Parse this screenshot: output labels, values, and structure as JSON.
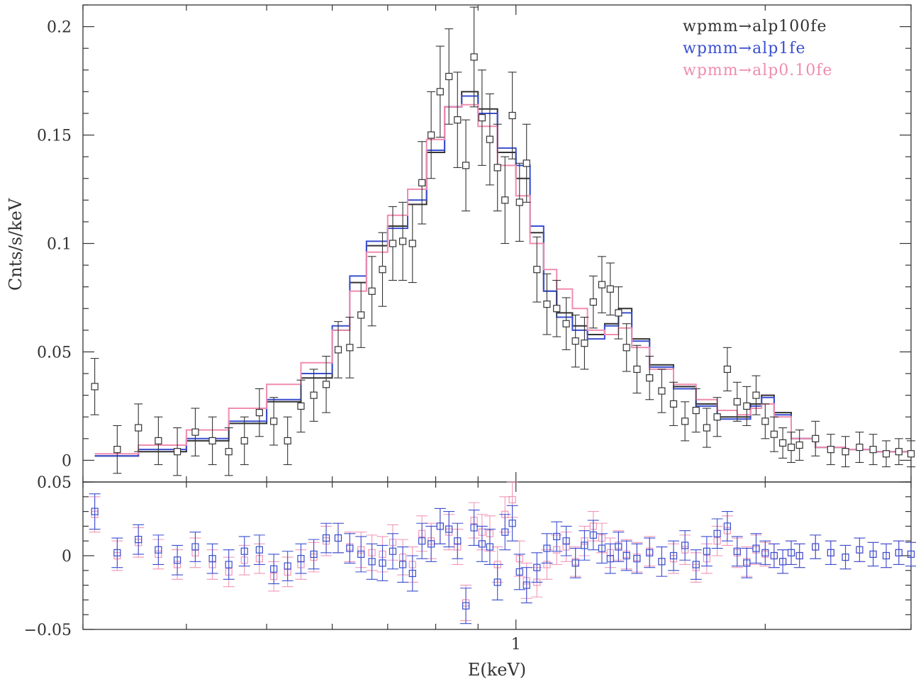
{
  "chart_data": [
    {
      "panel": "spectrum",
      "type": "line",
      "xlabel": "",
      "ylabel": "Cnts/s/keV",
      "x_scale": "log",
      "xlim": [
        0.3,
        3.0
      ],
      "ylim": [
        -0.01,
        0.21
      ],
      "y_ticks": [
        0,
        0.05,
        0.1,
        0.15,
        0.2
      ],
      "y_tick_labels": [
        "0",
        "0.05",
        "0.1",
        "0.15",
        "0.2"
      ],
      "legend_position": "top-right",
      "series": [
        {
          "name": "wpmm→alp100fe",
          "color": "#333333",
          "style": "step",
          "x": [
            0.31,
            0.35,
            0.4,
            0.45,
            0.5,
            0.55,
            0.6,
            0.63,
            0.66,
            0.7,
            0.74,
            0.78,
            0.82,
            0.86,
            0.9,
            0.95,
            1.0,
            1.04,
            1.08,
            1.12,
            1.17,
            1.22,
            1.28,
            1.33,
            1.38,
            1.45,
            1.55,
            1.65,
            1.75,
            1.85,
            1.92,
            1.98,
            2.05,
            2.15,
            2.3,
            2.5,
            2.7,
            3.0
          ],
          "y": [
            0.002,
            0.004,
            0.009,
            0.017,
            0.027,
            0.038,
            0.06,
            0.082,
            0.099,
            0.108,
            0.118,
            0.142,
            0.163,
            0.17,
            0.162,
            0.142,
            0.13,
            0.105,
            0.078,
            0.068,
            0.062,
            0.058,
            0.063,
            0.07,
            0.056,
            0.044,
            0.034,
            0.026,
            0.02,
            0.02,
            0.026,
            0.03,
            0.022,
            0.01,
            0.006,
            0.005,
            0.004,
            0.003
          ]
        },
        {
          "name": "wpmm→alp1fe",
          "color": "#3a4fd0",
          "style": "step",
          "x": [
            0.31,
            0.35,
            0.4,
            0.45,
            0.5,
            0.55,
            0.6,
            0.63,
            0.66,
            0.7,
            0.74,
            0.78,
            0.82,
            0.86,
            0.9,
            0.95,
            1.0,
            1.04,
            1.08,
            1.12,
            1.17,
            1.22,
            1.28,
            1.33,
            1.38,
            1.45,
            1.55,
            1.65,
            1.75,
            1.85,
            1.92,
            1.98,
            2.05,
            2.15,
            2.3,
            2.5,
            2.7,
            3.0
          ],
          "y": [
            0.002,
            0.005,
            0.01,
            0.018,
            0.028,
            0.04,
            0.062,
            0.085,
            0.101,
            0.107,
            0.12,
            0.143,
            0.163,
            0.168,
            0.16,
            0.144,
            0.136,
            0.108,
            0.078,
            0.066,
            0.06,
            0.056,
            0.062,
            0.068,
            0.055,
            0.043,
            0.033,
            0.025,
            0.019,
            0.019,
            0.025,
            0.029,
            0.021,
            0.01,
            0.006,
            0.005,
            0.004,
            0.003
          ]
        },
        {
          "name": "wpmm→alp0.10fe",
          "color": "#f08cb0",
          "style": "step",
          "x": [
            0.31,
            0.35,
            0.4,
            0.45,
            0.5,
            0.55,
            0.6,
            0.63,
            0.66,
            0.7,
            0.74,
            0.78,
            0.82,
            0.86,
            0.9,
            0.95,
            1.0,
            1.04,
            1.08,
            1.12,
            1.17,
            1.22,
            1.28,
            1.33,
            1.38,
            1.45,
            1.55,
            1.65,
            1.75,
            1.85,
            1.92,
            1.98,
            2.05,
            2.15,
            2.3,
            2.5,
            2.7,
            3.0
          ],
          "y": [
            0.003,
            0.007,
            0.014,
            0.024,
            0.035,
            0.045,
            0.06,
            0.078,
            0.096,
            0.113,
            0.125,
            0.148,
            0.163,
            0.164,
            0.154,
            0.136,
            0.122,
            0.1,
            0.088,
            0.079,
            0.07,
            0.06,
            0.058,
            0.061,
            0.052,
            0.042,
            0.035,
            0.028,
            0.023,
            0.021,
            0.024,
            0.026,
            0.02,
            0.01,
            0.006,
            0.005,
            0.004,
            0.003
          ]
        }
      ],
      "data_points": {
        "name": "data",
        "marker": "open-square",
        "color": "#333333",
        "x": [
          0.31,
          0.33,
          0.35,
          0.37,
          0.39,
          0.41,
          0.43,
          0.45,
          0.47,
          0.49,
          0.51,
          0.53,
          0.55,
          0.57,
          0.59,
          0.61,
          0.63,
          0.65,
          0.67,
          0.69,
          0.71,
          0.73,
          0.75,
          0.77,
          0.79,
          0.81,
          0.83,
          0.85,
          0.87,
          0.89,
          0.91,
          0.93,
          0.95,
          0.97,
          0.99,
          1.01,
          1.03,
          1.06,
          1.09,
          1.12,
          1.15,
          1.18,
          1.21,
          1.24,
          1.27,
          1.3,
          1.33,
          1.36,
          1.4,
          1.45,
          1.5,
          1.55,
          1.6,
          1.65,
          1.7,
          1.75,
          1.8,
          1.85,
          1.9,
          1.95,
          2.0,
          2.05,
          2.1,
          2.15,
          2.2,
          2.3,
          2.4,
          2.5,
          2.6,
          2.7,
          2.8,
          2.9,
          3.0
        ],
        "y": [
          0.034,
          0.005,
          0.015,
          0.009,
          0.004,
          0.013,
          0.009,
          0.004,
          0.009,
          0.022,
          0.018,
          0.009,
          0.025,
          0.03,
          0.035,
          0.051,
          0.052,
          0.067,
          0.078,
          0.088,
          0.1,
          0.101,
          0.1,
          0.128,
          0.15,
          0.17,
          0.177,
          0.157,
          0.136,
          0.186,
          0.158,
          0.148,
          0.135,
          0.12,
          0.159,
          0.119,
          0.137,
          0.088,
          0.072,
          0.07,
          0.063,
          0.055,
          0.054,
          0.073,
          0.081,
          0.079,
          0.068,
          0.052,
          0.042,
          0.038,
          0.032,
          0.026,
          0.018,
          0.023,
          0.015,
          0.02,
          0.042,
          0.027,
          0.025,
          0.03,
          0.018,
          0.012,
          0.008,
          0.006,
          0.007,
          0.01,
          0.005,
          0.004,
          0.006,
          0.005,
          0.003,
          0.004,
          0.003
        ],
        "err": [
          0.013,
          0.011,
          0.011,
          0.011,
          0.011,
          0.011,
          0.011,
          0.011,
          0.011,
          0.011,
          0.011,
          0.011,
          0.012,
          0.012,
          0.013,
          0.013,
          0.014,
          0.015,
          0.016,
          0.017,
          0.017,
          0.018,
          0.018,
          0.019,
          0.02,
          0.021,
          0.022,
          0.022,
          0.021,
          0.023,
          0.022,
          0.021,
          0.02,
          0.02,
          0.02,
          0.018,
          0.018,
          0.015,
          0.014,
          0.013,
          0.012,
          0.012,
          0.012,
          0.012,
          0.013,
          0.012,
          0.012,
          0.011,
          0.011,
          0.01,
          0.01,
          0.01,
          0.009,
          0.01,
          0.009,
          0.009,
          0.01,
          0.009,
          0.009,
          0.009,
          0.008,
          0.008,
          0.007,
          0.007,
          0.007,
          0.008,
          0.007,
          0.007,
          0.007,
          0.007,
          0.006,
          0.006,
          0.006
        ]
      }
    },
    {
      "panel": "residuals",
      "type": "scatter",
      "xlabel": "E(keV)",
      "ylabel": "",
      "x_scale": "log",
      "xlim": [
        0.3,
        3.0
      ],
      "ylim": [
        -0.05,
        0.05
      ],
      "y_ticks": [
        -0.05,
        0,
        0.05
      ],
      "y_tick_labels": [
        "−0.05",
        "0",
        "0.05"
      ],
      "x_ticks": [
        1
      ],
      "x_tick_labels": [
        "1"
      ],
      "series": [
        {
          "name": "wpmm→alp1fe",
          "color": "#3a4fd0",
          "x": [
            0.31,
            0.33,
            0.35,
            0.37,
            0.39,
            0.41,
            0.43,
            0.45,
            0.47,
            0.49,
            0.51,
            0.53,
            0.55,
            0.57,
            0.59,
            0.61,
            0.63,
            0.65,
            0.67,
            0.69,
            0.71,
            0.73,
            0.75,
            0.77,
            0.79,
            0.81,
            0.83,
            0.85,
            0.87,
            0.89,
            0.91,
            0.93,
            0.95,
            0.97,
            0.99,
            1.01,
            1.03,
            1.06,
            1.09,
            1.12,
            1.15,
            1.18,
            1.21,
            1.24,
            1.27,
            1.3,
            1.33,
            1.36,
            1.4,
            1.45,
            1.5,
            1.55,
            1.6,
            1.65,
            1.7,
            1.75,
            1.8,
            1.85,
            1.9,
            1.95,
            2.0,
            2.05,
            2.1,
            2.15,
            2.2,
            2.3,
            2.4,
            2.5,
            2.6,
            2.7,
            2.8,
            2.9,
            3.0
          ],
          "y": [
            0.03,
            0.002,
            0.011,
            0.004,
            -0.003,
            0.006,
            -0.002,
            -0.006,
            0.003,
            0.004,
            -0.009,
            -0.007,
            -0.002,
            0.001,
            0.012,
            0.012,
            0.005,
            0.001,
            -0.004,
            -0.005,
            0.003,
            -0.006,
            -0.012,
            0.01,
            0.008,
            0.02,
            0.018,
            0.01,
            -0.034,
            0.019,
            0.008,
            0.006,
            -0.018,
            0.016,
            0.022,
            -0.011,
            -0.02,
            -0.008,
            0.005,
            0.013,
            0.01,
            -0.005,
            0.007,
            0.014,
            0.005,
            -0.002,
            0.006,
            0.0,
            -0.002,
            0.002,
            -0.004,
            0.0,
            0.007,
            -0.006,
            0.003,
            0.015,
            0.02,
            0.003,
            -0.005,
            0.005,
            0.002,
            0.0,
            -0.004,
            0.002,
            0.0,
            0.006,
            0.002,
            -0.001,
            0.004,
            0.001,
            0.0,
            0.002,
            0.001
          ],
          "err": [
            0.012,
            0.01,
            0.01,
            0.01,
            0.01,
            0.01,
            0.01,
            0.01,
            0.01,
            0.01,
            0.01,
            0.01,
            0.01,
            0.01,
            0.01,
            0.01,
            0.01,
            0.012,
            0.012,
            0.012,
            0.012,
            0.012,
            0.012,
            0.012,
            0.012,
            0.012,
            0.012,
            0.012,
            0.012,
            0.012,
            0.012,
            0.012,
            0.012,
            0.012,
            0.012,
            0.012,
            0.012,
            0.01,
            0.01,
            0.01,
            0.01,
            0.01,
            0.01,
            0.01,
            0.01,
            0.01,
            0.01,
            0.01,
            0.01,
            0.01,
            0.01,
            0.01,
            0.01,
            0.01,
            0.01,
            0.01,
            0.01,
            0.01,
            0.01,
            0.01,
            0.008,
            0.008,
            0.008,
            0.008,
            0.008,
            0.008,
            0.008,
            0.008,
            0.008,
            0.008,
            0.008,
            0.008,
            0.008
          ]
        },
        {
          "name": "wpmm→alp0.10fe",
          "color": "#f08cb0",
          "x": [
            0.31,
            0.33,
            0.35,
            0.37,
            0.39,
            0.41,
            0.43,
            0.45,
            0.47,
            0.49,
            0.51,
            0.53,
            0.55,
            0.57,
            0.59,
            0.61,
            0.63,
            0.65,
            0.67,
            0.69,
            0.71,
            0.73,
            0.75,
            0.77,
            0.79,
            0.81,
            0.83,
            0.85,
            0.87,
            0.89,
            0.91,
            0.93,
            0.95,
            0.97,
            0.99,
            1.01,
            1.03,
            1.06,
            1.09,
            1.12,
            1.15,
            1.18,
            1.21,
            1.24,
            1.27,
            1.3,
            1.33,
            1.36,
            1.4,
            1.45,
            1.5,
            1.55,
            1.6,
            1.65,
            1.7,
            1.75,
            1.8,
            1.85,
            1.9,
            1.95,
            2.0,
            2.05,
            2.1,
            2.15,
            2.2,
            2.3,
            2.4,
            2.5,
            2.6,
            2.7,
            2.8,
            2.9,
            3.0
          ],
          "y": [
            0.028,
            0.0,
            0.009,
            0.001,
            -0.006,
            0.002,
            -0.006,
            -0.011,
            -0.003,
            -0.002,
            -0.014,
            -0.011,
            -0.006,
            -0.001,
            0.01,
            0.012,
            0.006,
            0.004,
            0.002,
            0.001,
            0.009,
            -0.001,
            -0.006,
            0.015,
            0.01,
            0.02,
            0.016,
            0.006,
            -0.032,
            0.024,
            0.016,
            0.015,
            -0.006,
            0.028,
            0.038,
            -0.002,
            -0.017,
            -0.018,
            -0.006,
            0.004,
            0.006,
            -0.004,
            0.01,
            0.02,
            0.012,
            0.002,
            0.007,
            0.001,
            -0.001,
            0.003,
            -0.004,
            -0.002,
            0.004,
            -0.008,
            -0.002,
            0.01,
            0.017,
            0.002,
            -0.004,
            0.004,
            0.001,
            0.0,
            -0.004,
            0.002,
            0.0,
            0.006,
            0.002,
            -0.001,
            0.004,
            0.001,
            0.0,
            0.002,
            0.001
          ],
          "err": [
            0.012,
            0.01,
            0.01,
            0.01,
            0.01,
            0.01,
            0.01,
            0.01,
            0.01,
            0.01,
            0.01,
            0.01,
            0.01,
            0.01,
            0.01,
            0.01,
            0.01,
            0.012,
            0.012,
            0.012,
            0.012,
            0.012,
            0.012,
            0.012,
            0.012,
            0.012,
            0.012,
            0.012,
            0.012,
            0.012,
            0.012,
            0.012,
            0.012,
            0.012,
            0.012,
            0.012,
            0.012,
            0.01,
            0.01,
            0.01,
            0.01,
            0.01,
            0.01,
            0.01,
            0.01,
            0.01,
            0.01,
            0.01,
            0.01,
            0.01,
            0.01,
            0.01,
            0.01,
            0.01,
            0.01,
            0.01,
            0.01,
            0.01,
            0.01,
            0.01,
            0.008,
            0.008,
            0.008,
            0.008,
            0.008,
            0.008,
            0.008,
            0.008,
            0.008,
            0.008,
            0.008,
            0.008,
            0.008
          ]
        }
      ]
    }
  ]
}
